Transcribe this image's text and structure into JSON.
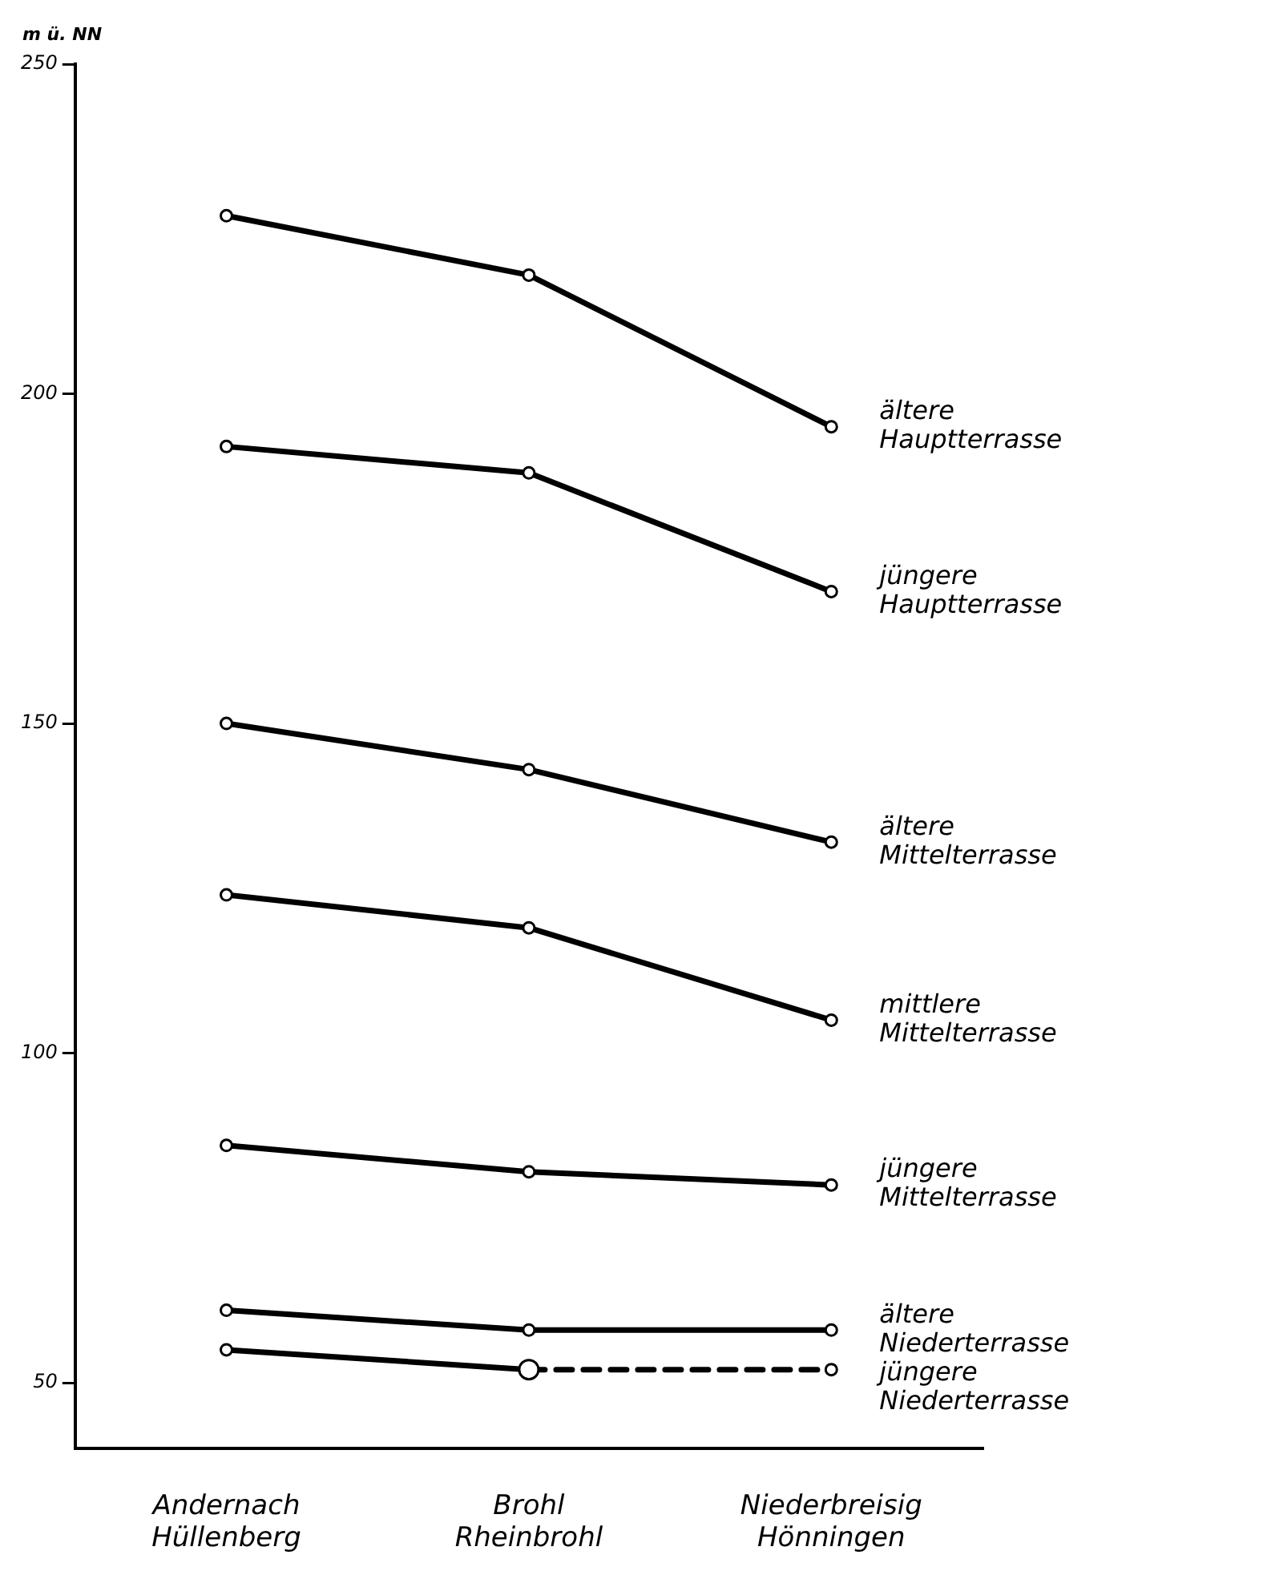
{
  "chart_data": {
    "type": "line",
    "ylabel": "m ü. NN",
    "categories": [
      "Andernach Hüllenberg",
      "Brohl Rheinbrohl",
      "Niederbreisig Hönningen"
    ],
    "ylim": [
      40,
      250
    ],
    "yticks": [
      50,
      100,
      150,
      200,
      250
    ],
    "grid": false,
    "legend": false,
    "marker": "circle",
    "line_style": "solid",
    "series": [
      {
        "name": "ältere Hauptterrasse",
        "color": "#000000",
        "values": [
          227,
          218,
          195
        ]
      },
      {
        "name": "jüngere Hauptterrasse",
        "color": "#000000",
        "values": [
          192,
          188,
          170
        ]
      },
      {
        "name": "ältere Mittelterrasse",
        "color": "#000000",
        "values": [
          150,
          143,
          132
        ]
      },
      {
        "name": "mittlere Mittelterrasse",
        "color": "#000000",
        "values": [
          124,
          119,
          105
        ]
      },
      {
        "name": "jüngere Mittelterrasse",
        "color": "#000000",
        "values": [
          86,
          82,
          80
        ]
      },
      {
        "name": "ältere Niederterrasse",
        "color": "#000000",
        "values": [
          61,
          58,
          58
        ]
      },
      {
        "color": "#000000",
        "values": [
          55,
          52,
          null
        ]
      },
      {
        "name": "jüngere Niederterrasse",
        "color": "#000000",
        "values": [
          null,
          52,
          52
        ],
        "line_style": "dashed"
      }
    ]
  }
}
